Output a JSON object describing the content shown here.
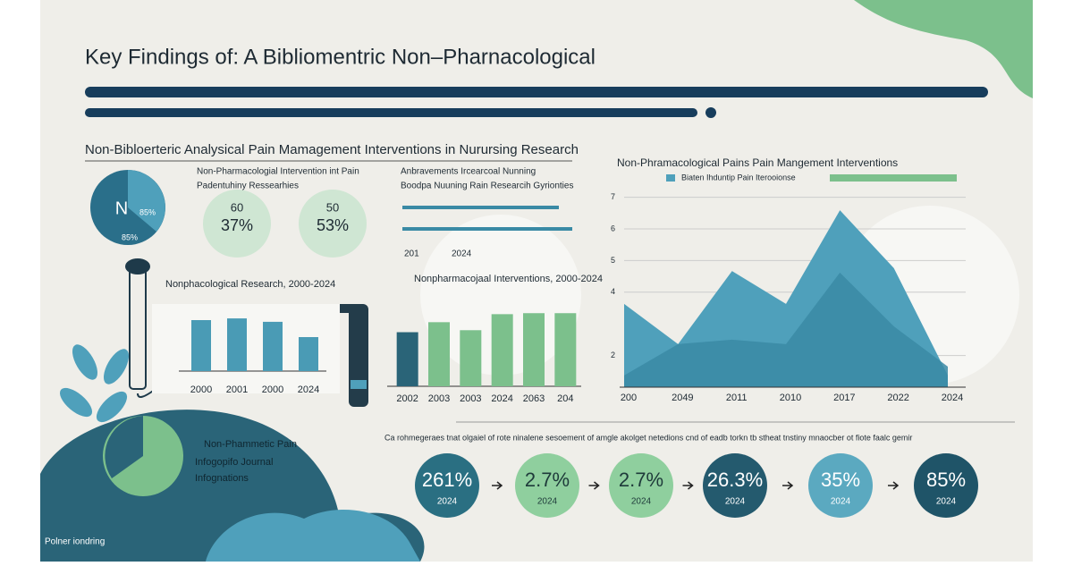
{
  "header": {
    "title": "Key Findings of:  A Bibliomentric Non–Pharnacological",
    "subtitle": "Non-Bibloerteric Analysical Pain Mamagement Interventions in Nurursing Research"
  },
  "pie": {
    "label": "N",
    "value_text": "85%",
    "caption": "85%"
  },
  "intro": {
    "lines": [
      "Non-Pharmacologial Intervention int Pain",
      "Padentuhiny Ressearhies"
    ],
    "badges": [
      {
        "top": "60",
        "main": "37%"
      },
      {
        "top": "50",
        "main": "53%"
      }
    ]
  },
  "notes": {
    "lines": [
      "Anbravements Ircearcoal Nunning",
      "Boodpa Nuuning Rain Researcih Gyrionties"
    ],
    "range": [
      "201",
      "2024"
    ]
  },
  "chart_data": [
    {
      "type": "bar",
      "title": "Nonphacological Research, 2000-2024",
      "categories": [
        "2000",
        "2001",
        "2000",
        "2024"
      ],
      "values": [
        60,
        62,
        58,
        40
      ],
      "ylim": [
        0,
        100
      ],
      "color": "#4a9bb5"
    },
    {
      "type": "bar",
      "title": "Nonpharmacojaal Interventions, 2000-2024",
      "categories": [
        "2002",
        "2003",
        "2003",
        "2024",
        "2063",
        "204"
      ],
      "values": [
        54,
        64,
        56,
        72,
        73,
        73
      ],
      "ylim": [
        0,
        100
      ],
      "colors": [
        "#2a6478",
        "#7cc08c",
        "#7cc08c",
        "#7cc08c",
        "#7cc08c",
        "#7cc08c"
      ]
    },
    {
      "type": "area",
      "title": "Non-Phramacological Pains Pain Mangement Interventions",
      "categories": [
        "200",
        "2049",
        "2011",
        "2010",
        "2017",
        "2022",
        "2024"
      ],
      "series": [
        {
          "name": "Biaten Ihduntip Pain Iterooionse",
          "color": "#4fa0bb",
          "values": [
            3.63,
            2.36,
            4.67,
            3.63,
            6.59,
            4.76,
            1.37
          ]
        },
        {
          "name": "",
          "color": "#3a8aa5",
          "values": [
            1.37,
            2.36,
            2.5,
            2.36,
            4.62,
            2.92,
            1.65
          ]
        }
      ],
      "ylim": [
        1,
        7.3
      ],
      "yticks": [
        2,
        4,
        5,
        6,
        7
      ],
      "grid": true
    }
  ],
  "summary": {
    "text": "Ca rohmegeraes tnat olgaiel of rote ninalene sesoement of amgle akolget netedions cnd of eadb torkn tb stheat tnstiny mnaocber ot fiote faalc gemir",
    "stats": [
      {
        "value": "261%",
        "year": "2024"
      },
      {
        "value": "2.7%",
        "year": "2024"
      },
      {
        "value": "2.7%",
        "year": "2024"
      },
      {
        "value": "26.3%",
        "year": "2024"
      },
      {
        "value": "35%",
        "year": "2024"
      },
      {
        "value": "85%",
        "year": "2024"
      }
    ]
  },
  "panel": {
    "lines": [
      "Non-Phammetic Pain",
      "Infogopifo Journal",
      "Infognations"
    ],
    "footer": "Polner iondring"
  }
}
